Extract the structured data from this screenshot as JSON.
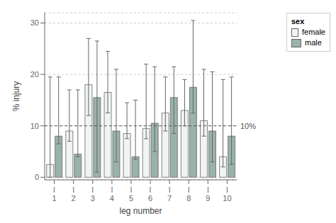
{
  "chart_data": {
    "type": "bar",
    "title": "",
    "xlabel": "leg number",
    "ylabel": "% injury",
    "categories": [
      "l\n1",
      "l\n2",
      "l\n3",
      "l\n4",
      "l\n5",
      "l\n6",
      "l\n7",
      "l\n8",
      "l\n9",
      "l\n10"
    ],
    "series": [
      {
        "name": "female",
        "color": "#f0f4f2",
        "values": [
          2.5,
          9.0,
          18.0,
          16.5,
          8.5,
          9.5,
          12.5,
          13.0,
          11.0,
          4.0
        ],
        "errors_low": [
          2.5,
          2.0,
          6.0,
          4.0,
          1.0,
          2.0,
          3.5,
          3.0,
          3.0,
          2.0
        ],
        "errors_high": [
          17.0,
          8.0,
          9.0,
          8.0,
          6.0,
          12.5,
          7.0,
          6.0,
          10.0,
          15.0
        ]
      },
      {
        "name": "male",
        "color": "#9ab3a8",
        "values": [
          8.0,
          4.5,
          15.5,
          9.0,
          4.0,
          10.5,
          15.5,
          17.5,
          9.0,
          8.0
        ],
        "errors_low": [
          1.5,
          0.5,
          14.5,
          6.0,
          0.5,
          5.5,
          7.0,
          5.0,
          6.0,
          5.5
        ],
        "errors_high": [
          11.5,
          12.5,
          11.0,
          12.0,
          11.0,
          11.0,
          6.0,
          13.0,
          11.5,
          11.5
        ]
      }
    ],
    "hline": {
      "y": 10,
      "label": "10%",
      "line_style": "dashed"
    },
    "ylim": [
      -0.5,
      32
    ],
    "yticks": [
      0,
      10,
      20,
      30
    ],
    "grid": true,
    "legend": "upper right",
    "legend_title": "sex"
  }
}
